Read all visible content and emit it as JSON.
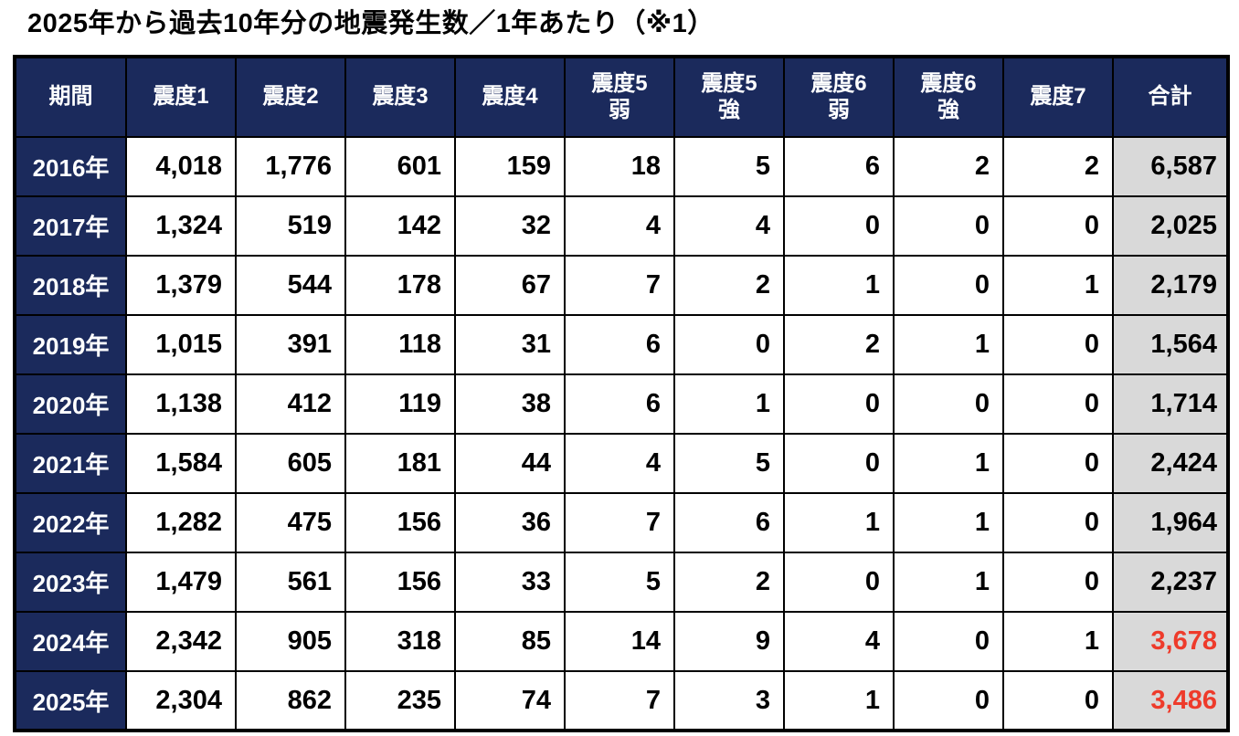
{
  "chart_data": {
    "type": "table",
    "title": "2025年から過去10年分の地震発生数／1年あたり（※1）",
    "columns": [
      "期間",
      "震度1",
      "震度2",
      "震度3",
      "震度4",
      "震度5弱",
      "震度5強",
      "震度6弱",
      "震度6強",
      "震度7",
      "合計"
    ],
    "column_labels": [
      "期間",
      "震度1",
      "震度2",
      "震度3",
      "震度4",
      "震度5\n弱",
      "震度5\n強",
      "震度6\n弱",
      "震度6\n強",
      "震度7",
      "合計"
    ],
    "rows": [
      {
        "period": "2016年",
        "counts": [
          4018,
          1776,
          601,
          159,
          18,
          5,
          6,
          2,
          2
        ],
        "total": 6587,
        "highlight": false
      },
      {
        "period": "2017年",
        "counts": [
          1324,
          519,
          142,
          32,
          4,
          4,
          0,
          0,
          0
        ],
        "total": 2025,
        "highlight": false
      },
      {
        "period": "2018年",
        "counts": [
          1379,
          544,
          178,
          67,
          7,
          2,
          1,
          0,
          1
        ],
        "total": 2179,
        "highlight": false
      },
      {
        "period": "2019年",
        "counts": [
          1015,
          391,
          118,
          31,
          6,
          0,
          2,
          1,
          0
        ],
        "total": 1564,
        "highlight": false
      },
      {
        "period": "2020年",
        "counts": [
          1138,
          412,
          119,
          38,
          6,
          1,
          0,
          0,
          0
        ],
        "total": 1714,
        "highlight": false
      },
      {
        "period": "2021年",
        "counts": [
          1584,
          605,
          181,
          44,
          4,
          5,
          0,
          1,
          0
        ],
        "total": 2424,
        "highlight": false
      },
      {
        "period": "2022年",
        "counts": [
          1282,
          475,
          156,
          36,
          7,
          6,
          1,
          1,
          0
        ],
        "total": 1964,
        "highlight": false
      },
      {
        "period": "2023年",
        "counts": [
          1479,
          561,
          156,
          33,
          5,
          2,
          0,
          1,
          0
        ],
        "total": 2237,
        "highlight": false
      },
      {
        "period": "2024年",
        "counts": [
          2342,
          905,
          318,
          85,
          14,
          9,
          4,
          0,
          1
        ],
        "total": 3678,
        "highlight": true
      },
      {
        "period": "2025年",
        "counts": [
          2304,
          862,
          235,
          74,
          7,
          3,
          1,
          0,
          0
        ],
        "total": 3486,
        "highlight": true
      }
    ]
  },
  "colors": {
    "header_bg": "#1b2a5c",
    "header_text": "#ffffff",
    "total_bg": "#d9d9d9",
    "highlight_red": "#ee3b2b",
    "grid_border": "#000000",
    "body_text": "#000000",
    "page_bg": "#ffffff"
  }
}
